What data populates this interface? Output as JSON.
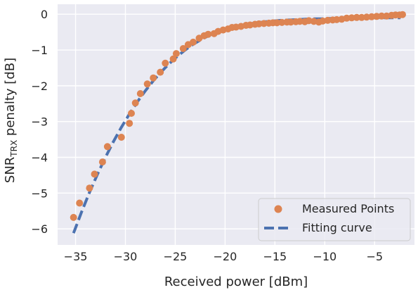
{
  "chart_data": {
    "type": "scatter",
    "xlabel": "Received power [dBm]",
    "ylabel": {
      "main": "SNR",
      "sub": "TRX",
      "rest": " penalty [dB]"
    },
    "xlim": [
      -36.8,
      -1.0
    ],
    "ylim": [
      -6.45,
      0.28
    ],
    "xticks": [
      -35,
      -30,
      -25,
      -20,
      -15,
      -10,
      -5
    ],
    "yticks": [
      -6,
      -5,
      -4,
      -3,
      -2,
      -1,
      0
    ],
    "xtick_labels": [
      "−35",
      "−30",
      "−25",
      "−20",
      "−15",
      "−10",
      "−5"
    ],
    "ytick_labels": [
      "−6",
      "−5",
      "−4",
      "−3",
      "−2",
      "−1",
      "0"
    ],
    "grid": true,
    "legend_position": "bottom-right",
    "colors": {
      "points": "#dd8452",
      "curve": "#4c72b0",
      "background": "#eaeaf2",
      "grid": "#ffffff"
    },
    "series": [
      {
        "name": "Measured Points",
        "type": "scatter",
        "x": [
          -35.2,
          -34.6,
          -33.6,
          -33.1,
          -32.3,
          -31.8,
          -30.4,
          -29.6,
          -29.4,
          -29.0,
          -28.5,
          -27.8,
          -27.2,
          -26.5,
          -26.0,
          -25.2,
          -24.9,
          -24.2,
          -23.7,
          -23.2,
          -22.6,
          -22.1,
          -21.7,
          -21.1,
          -20.7,
          -20.2,
          -19.7,
          -19.3,
          -18.9,
          -18.4,
          -17.9,
          -17.5,
          -17.0,
          -16.6,
          -16.1,
          -15.6,
          -15.2,
          -14.8,
          -14.3,
          -13.8,
          -13.4,
          -12.9,
          -12.5,
          -12.0,
          -11.6,
          -11.1,
          -10.6,
          -10.2,
          -9.7,
          -9.2,
          -8.8,
          -8.3,
          -7.8,
          -7.3,
          -6.8,
          -6.3,
          -5.8,
          -5.3,
          -4.8,
          -4.3,
          -3.8,
          -3.3,
          -2.9,
          -2.5,
          -2.2
        ],
        "y": [
          -5.68,
          -5.28,
          -4.86,
          -4.47,
          -4.13,
          -3.7,
          -3.44,
          -3.05,
          -2.77,
          -2.48,
          -2.22,
          -1.95,
          -1.78,
          -1.62,
          -1.37,
          -1.25,
          -1.1,
          -0.96,
          -0.85,
          -0.78,
          -0.67,
          -0.6,
          -0.56,
          -0.54,
          -0.48,
          -0.44,
          -0.41,
          -0.37,
          -0.36,
          -0.34,
          -0.31,
          -0.3,
          -0.28,
          -0.27,
          -0.26,
          -0.25,
          -0.24,
          -0.24,
          -0.23,
          -0.22,
          -0.22,
          -0.21,
          -0.2,
          -0.21,
          -0.18,
          -0.2,
          -0.22,
          -0.19,
          -0.17,
          -0.16,
          -0.15,
          -0.14,
          -0.11,
          -0.1,
          -0.09,
          -0.09,
          -0.08,
          -0.07,
          -0.06,
          -0.05,
          -0.05,
          -0.03,
          -0.02,
          -0.02,
          -0.01
        ]
      },
      {
        "name": "Fitting curve",
        "type": "line",
        "style": "dashed",
        "x": [
          -35.2,
          -34.4,
          -33.6,
          -32.8,
          -32.0,
          -31.2,
          -30.4,
          -29.6,
          -28.8,
          -28.0,
          -27.2,
          -26.4,
          -25.6,
          -24.8,
          -24.0,
          -23.2,
          -22.4,
          -21.6,
          -20.8,
          -20.0,
          -19.2,
          -18.4,
          -17.6,
          -16.8,
          -16.0,
          -15.2,
          -14.4,
          -13.6,
          -12.8,
          -12.0,
          -11.2,
          -10.4,
          -9.6,
          -8.8,
          -8.0,
          -7.2,
          -6.4,
          -5.6,
          -4.8,
          -4.0,
          -3.2,
          -2.4
        ],
        "y": [
          -6.12,
          -5.53,
          -4.98,
          -4.47,
          -4.0,
          -3.56,
          -3.16,
          -2.79,
          -2.45,
          -2.14,
          -1.86,
          -1.61,
          -1.38,
          -1.18,
          -1.0,
          -0.84,
          -0.71,
          -0.59,
          -0.49,
          -0.42,
          -0.36,
          -0.31,
          -0.27,
          -0.24,
          -0.21,
          -0.19,
          -0.17,
          -0.16,
          -0.15,
          -0.14,
          -0.13,
          -0.13,
          -0.12,
          -0.12,
          -0.11,
          -0.11,
          -0.11,
          -0.1,
          -0.1,
          -0.1,
          -0.1,
          -0.1
        ]
      }
    ]
  }
}
